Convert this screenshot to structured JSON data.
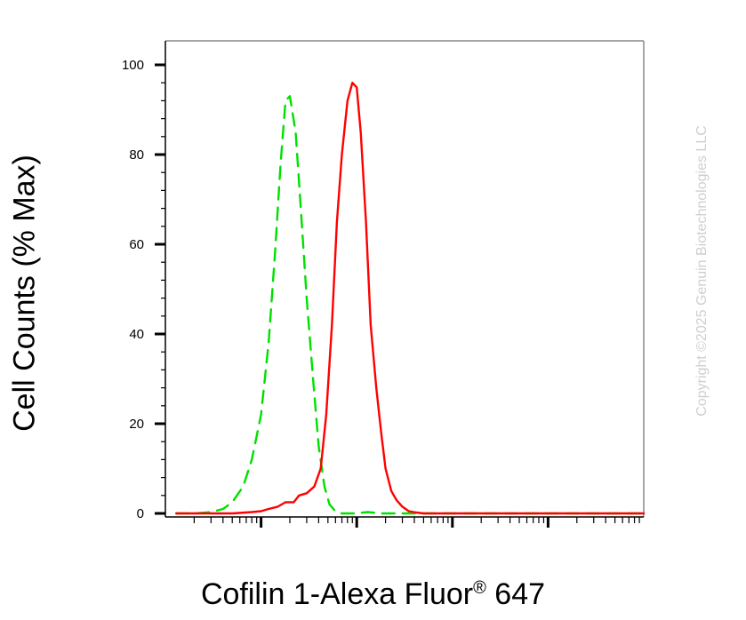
{
  "chart_data": {
    "type": "line",
    "title": "",
    "xlabel_main": "Cofilin 1-Alexa Fluor",
    "xlabel_reg": "®",
    "xlabel_tail": "647",
    "ylabel": "Cell Counts (% Max)",
    "x_scale": "log",
    "xlim": [
      1,
      100000
    ],
    "ylim": [
      0,
      100
    ],
    "y_ticks": [
      "0",
      "20",
      "40",
      "60",
      "80",
      "100"
    ],
    "y_tick_values": [
      0,
      20,
      40,
      60,
      80,
      100
    ],
    "grid": false,
    "series": [
      {
        "style": "dashed",
        "color": "#00e000",
        "x": [
          1.3,
          2,
          3,
          4,
          5,
          6.5,
          8,
          10,
          12,
          14,
          16,
          18,
          20,
          23,
          26,
          30,
          35,
          40,
          46,
          52,
          60,
          70,
          80,
          95,
          130,
          180,
          250,
          400,
          1000,
          5000,
          100000
        ],
        "y": [
          0,
          0,
          0.3,
          1,
          2.5,
          6,
          12,
          22,
          38,
          58,
          78,
          92,
          93,
          85,
          68,
          48,
          30,
          15,
          6,
          2,
          0.5,
          0,
          0,
          0,
          0.3,
          0,
          0,
          0,
          0,
          0,
          0
        ]
      },
      {
        "style": "solid",
        "color": "#ff0000",
        "x": [
          1.3,
          5,
          8,
          10,
          12,
          15,
          18,
          22,
          25,
          30,
          36,
          42,
          48,
          55,
          62,
          70,
          80,
          90,
          100,
          110,
          125,
          140,
          160,
          180,
          200,
          230,
          260,
          300,
          350,
          420,
          500,
          800,
          2000,
          10000,
          100000
        ],
        "y": [
          0,
          0,
          0.3,
          0.5,
          1,
          1.5,
          2.5,
          2.5,
          4,
          4.5,
          6,
          10,
          22,
          42,
          65,
          80,
          92,
          96,
          95,
          85,
          65,
          42,
          28,
          18,
          10,
          5,
          3,
          1.5,
          0.5,
          0.2,
          0,
          0,
          0,
          0,
          0
        ]
      }
    ]
  },
  "watermark": "Copyright ©2025 Genuin Biotechnologies LLC"
}
